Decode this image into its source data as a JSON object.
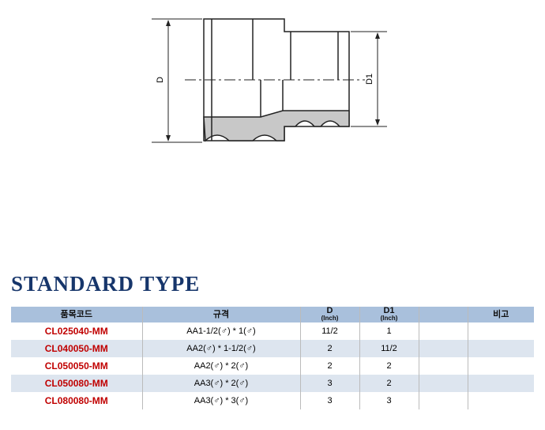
{
  "drawing": {
    "labels": [
      "D",
      "D1"
    ]
  },
  "section_title": "STANDARD TYPE",
  "table": {
    "header": [
      "품목코드",
      "규격",
      [
        "D",
        "(Inch)"
      ],
      [
        "D1",
        "(Inch)"
      ],
      "비고"
    ],
    "rows": [
      [
        "CL025040-MM",
        "AA1-1/2(♂) * 1(♂)",
        "11/2",
        "1"
      ],
      [
        "CL040050-MM",
        "AA2(♂) * 1-1/2(♂)",
        "2",
        "11/2"
      ],
      [
        "CL050050-MM",
        "AA2(♂) * 2(♂)",
        "2",
        "2"
      ],
      [
        "CL050080-MM",
        "AA3(♂) * 2(♂)",
        "3",
        "2"
      ],
      [
        "CL080080-MM",
        "AA3(♂) * 3(♂)",
        "3",
        "3"
      ]
    ]
  }
}
